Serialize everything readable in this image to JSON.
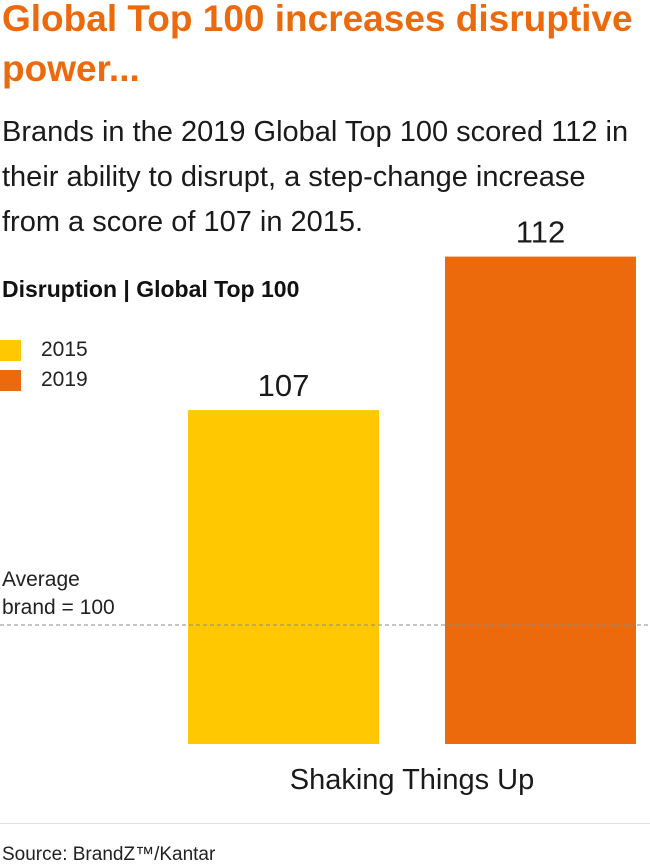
{
  "headline": "Global Top 100 increases disruptive power...",
  "lead": "Brands in the 2019 Global Top 100 scored 112 in their ability to disrupt, a step-change increase from a score of 107 in 2015.",
  "colors": {
    "accent": "#ec6a0b",
    "series_2015": "#ffc800",
    "series_2019": "#ec6a0b"
  },
  "chart_data": {
    "type": "bar",
    "title": "Disruption | Global Top 100",
    "categories": [
      "Shaking Things Up"
    ],
    "series": [
      {
        "name": "2015",
        "values": [
          107
        ],
        "color": "#ffc800"
      },
      {
        "name": "2019",
        "values": [
          112
        ],
        "color": "#ec6a0b"
      }
    ],
    "baseline": {
      "value": 100,
      "label_line1": "Average",
      "label_line2": "brand = 100",
      "style": "dashed"
    },
    "legend": "top-left",
    "grid": false
  },
  "source": "Source: BrandZ™/Kantar"
}
